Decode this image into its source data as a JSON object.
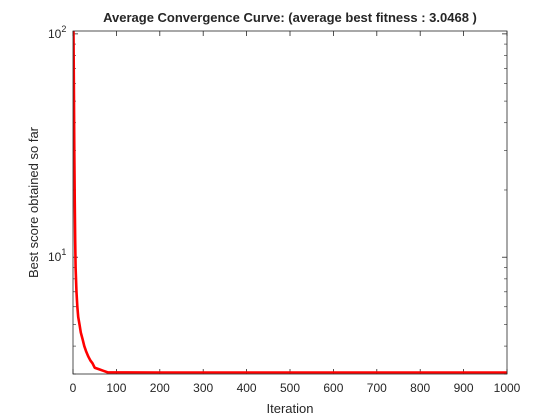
{
  "chart_data": {
    "type": "line",
    "title": "Average Convergence Curve: (average best fitness : 3.0468 )",
    "xlabel": "Iteration",
    "ylabel": "Best score obtained so far",
    "xlim": [
      0,
      1000
    ],
    "ylim": [
      3.0,
      103
    ],
    "y_scale": "log",
    "grid": false,
    "box": true,
    "x_ticks": [
      0,
      100,
      200,
      300,
      400,
      500,
      600,
      700,
      800,
      900,
      1000
    ],
    "x_tick_labels": [
      "0",
      "100",
      "200",
      "300",
      "400",
      "500",
      "600",
      "700",
      "800",
      "900",
      "1000"
    ],
    "y_major_ticks": [
      10,
      100
    ],
    "y_major_tick_labels": [
      {
        "base": "10",
        "exp": "1"
      },
      {
        "base": "10",
        "exp": "2"
      }
    ],
    "series": [
      {
        "color": "#ff0000",
        "x": [
          1,
          2,
          3,
          4,
          5,
          6,
          8,
          10,
          12,
          15,
          18,
          22,
          26,
          30,
          35,
          40,
          45,
          50,
          60,
          70,
          80,
          100,
          200,
          400,
          600,
          800,
          1000
        ],
        "y": [
          110,
          60,
          30,
          18,
          12,
          9,
          7,
          6,
          5.4,
          5.0,
          4.6,
          4.3,
          4.0,
          3.8,
          3.6,
          3.45,
          3.35,
          3.2,
          3.15,
          3.1,
          3.05,
          3.05,
          3.0468,
          3.0468,
          3.0468,
          3.0468,
          3.0468
        ]
      }
    ]
  }
}
